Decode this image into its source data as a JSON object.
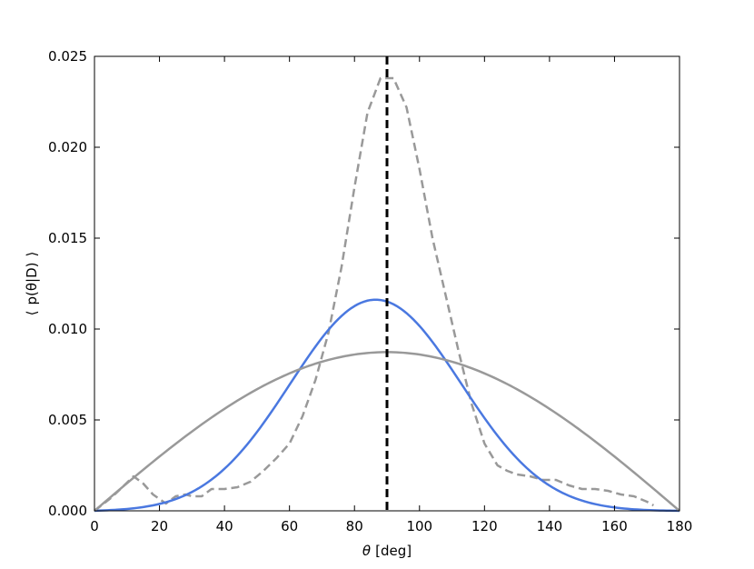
{
  "chart_data": {
    "type": "line",
    "xlabel_symbol": "θ",
    "xlabel_unit": "[deg]",
    "ylabel_left": "⟨",
    "ylabel_main": "p(θ|D)",
    "ylabel_right": "⟩",
    "xlim": [
      0,
      180
    ],
    "ylim": [
      0,
      0.025
    ],
    "xticks": [
      "0",
      "20",
      "40",
      "60",
      "80",
      "100",
      "120",
      "140",
      "160",
      "180"
    ],
    "yticks": [
      "0.000",
      "0.005",
      "0.010",
      "0.015",
      "0.020",
      "0.025"
    ],
    "grid": false,
    "legend": "none",
    "vline": {
      "x": 90,
      "color": "#000000",
      "style": "dashed"
    },
    "series": [
      {
        "color": "#999999",
        "style": "dashed",
        "x": [
          0,
          5,
          8,
          12,
          15,
          18,
          22,
          25,
          28,
          30,
          33,
          36,
          40,
          44,
          48,
          52,
          56,
          60,
          64,
          68,
          72,
          76,
          80,
          84,
          88,
          92,
          96,
          100,
          104,
          108,
          112,
          116,
          120,
          124,
          127,
          130,
          134,
          138,
          142,
          146,
          150,
          154,
          158,
          162,
          166,
          170,
          172
        ],
        "y": [
          0.0,
          0.0007,
          0.0012,
          0.0019,
          0.0015,
          0.0009,
          0.0004,
          0.0008,
          0.0009,
          0.0008,
          0.0008,
          0.0012,
          0.0012,
          0.0013,
          0.0016,
          0.0022,
          0.0029,
          0.0037,
          0.0052,
          0.0072,
          0.0098,
          0.0134,
          0.0178,
          0.0219,
          0.0238,
          0.0238,
          0.0222,
          0.0188,
          0.015,
          0.0119,
          0.0088,
          0.0059,
          0.0037,
          0.0025,
          0.0022,
          0.002,
          0.0019,
          0.0017,
          0.0017,
          0.0014,
          0.0012,
          0.0012,
          0.0011,
          0.0009,
          0.0008,
          0.0005,
          0.0003
        ]
      },
      {
        "color": "#4a78e0",
        "style": "solid",
        "formula": "gaussian-window",
        "mean": 86,
        "sigma": 28,
        "peak": 0.01163,
        "x_range": [
          0,
          180
        ]
      },
      {
        "color": "#999999",
        "style": "solid",
        "formula": "sine",
        "peak": 0.00873,
        "x_range": [
          0,
          180
        ]
      }
    ]
  }
}
